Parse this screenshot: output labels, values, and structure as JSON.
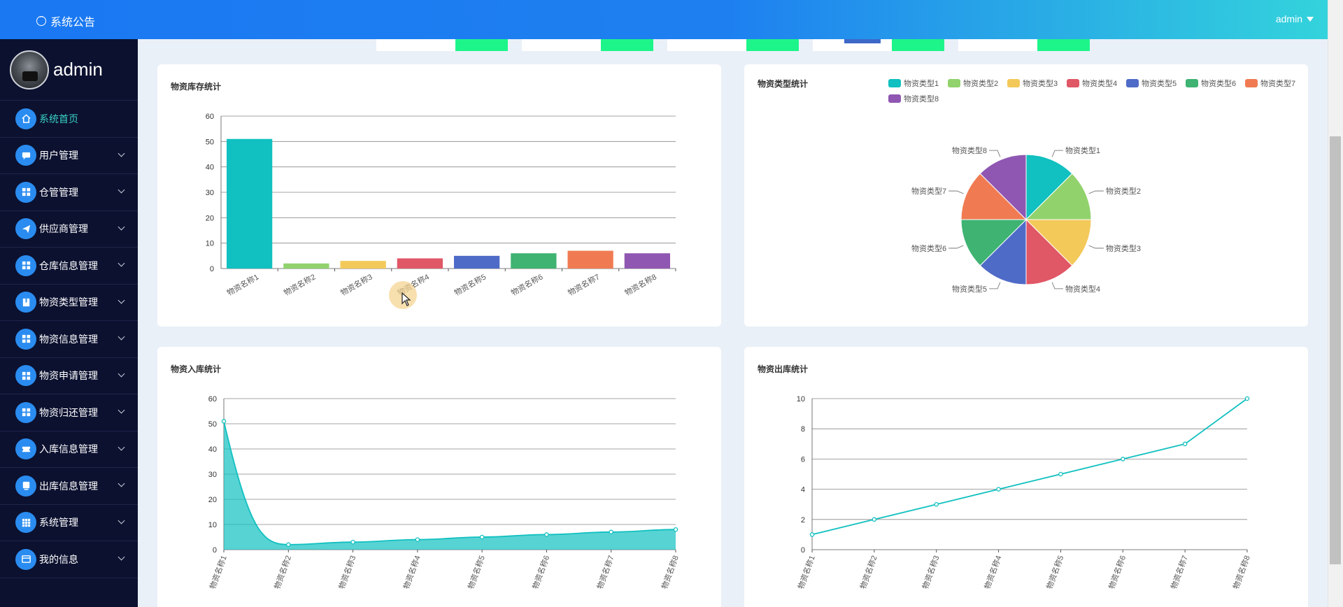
{
  "header": {
    "notice_label": "系统公告",
    "user_label": "admin"
  },
  "sidebar": {
    "profile_name": "admin",
    "items": [
      {
        "label": "系统首页",
        "icon": "home-icon",
        "active": true,
        "has_chevron": false
      },
      {
        "label": "用户管理",
        "icon": "chat-icon",
        "has_chevron": true
      },
      {
        "label": "仓管管理",
        "icon": "grid-icon",
        "has_chevron": true
      },
      {
        "label": "供应商管理",
        "icon": "send-icon",
        "has_chevron": true
      },
      {
        "label": "仓库信息管理",
        "icon": "grid-icon",
        "has_chevron": true
      },
      {
        "label": "物资类型管理",
        "icon": "book-icon",
        "has_chevron": true
      },
      {
        "label": "物资信息管理",
        "icon": "grid-icon",
        "has_chevron": true
      },
      {
        "label": "物资申请管理",
        "icon": "grid-icon",
        "has_chevron": true
      },
      {
        "label": "物资归还管理",
        "icon": "grid-icon",
        "has_chevron": true
      },
      {
        "label": "入库信息管理",
        "icon": "ticket-icon",
        "has_chevron": true
      },
      {
        "label": "出库信息管理",
        "icon": "tablet-icon",
        "has_chevron": true
      },
      {
        "label": "系统管理",
        "icon": "apps-icon",
        "has_chevron": true
      },
      {
        "label": "我的信息",
        "icon": "card-icon",
        "has_chevron": true
      }
    ]
  },
  "colors": {
    "accent": "#1e80f0",
    "sidebar_bg": "#0c1130",
    "active_text": "#38d3c4",
    "teal": "#11c0c0",
    "palette": [
      "#11c0c0",
      "#91d26c",
      "#f3c95a",
      "#e05766",
      "#4f6bc8",
      "#3eb372",
      "#f07b52",
      "#8f57b2"
    ]
  },
  "chart_data": [
    {
      "type": "bar",
      "title": "物资库存统计",
      "categories": [
        "物资名称1",
        "物资名称2",
        "物资名称3",
        "物资名称4",
        "物资名称5",
        "物资名称6",
        "物资名称7",
        "物资名称8"
      ],
      "values": [
        51,
        2,
        3,
        4,
        5,
        6,
        7,
        6
      ],
      "ylim": [
        0,
        60
      ],
      "yticks": [
        0,
        10,
        20,
        30,
        40,
        50,
        60
      ],
      "grid": true
    },
    {
      "type": "pie",
      "title": "物资类型统计",
      "labels": [
        "物资类型1",
        "物资类型2",
        "物资类型3",
        "物资类型4",
        "物资类型5",
        "物资类型6",
        "物资类型7",
        "物资类型8"
      ],
      "values": [
        1,
        1,
        1,
        1,
        1,
        1,
        1,
        1
      ],
      "legend": "top-right"
    },
    {
      "type": "area",
      "title": "物资入库统计",
      "categories": [
        "物资名称1",
        "物资名称2",
        "物资名称3",
        "物资名称4",
        "物资名称5",
        "物资名称6",
        "物资名称7",
        "物资名称8"
      ],
      "values": [
        51,
        2,
        3,
        4,
        5,
        6,
        7,
        8
      ],
      "ylim": [
        0,
        60
      ],
      "yticks": [
        0,
        10,
        20,
        30,
        40,
        50,
        60
      ],
      "smooth": true,
      "grid": true
    },
    {
      "type": "line",
      "title": "物资出库统计",
      "categories": [
        "物资名称1",
        "物资名称2",
        "物资名称3",
        "物资名称4",
        "物资名称5",
        "物资名称6",
        "物资名称7",
        "物资名称8"
      ],
      "values": [
        1,
        2,
        3,
        4,
        5,
        6,
        7,
        10
      ],
      "ylim": [
        0,
        10
      ],
      "yticks": [
        0,
        2,
        4,
        6,
        8,
        10
      ],
      "grid": true
    }
  ]
}
